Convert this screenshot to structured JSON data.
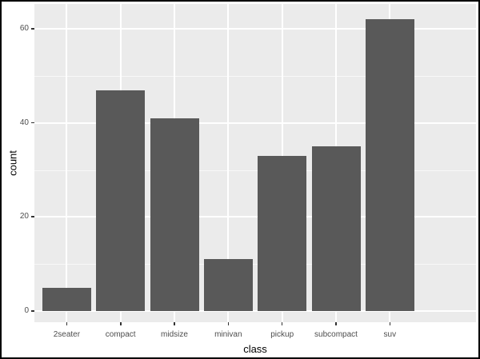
{
  "figure": {
    "background": "#FFFFFF",
    "border_color": "#000000"
  },
  "chart_data": {
    "type": "bar",
    "title": "",
    "xlabel": "class",
    "ylabel": "count",
    "categories": [
      "2seater",
      "compact",
      "midsize",
      "minivan",
      "pickup",
      "subcompact",
      "suv"
    ],
    "values": [
      5,
      47,
      41,
      11,
      33,
      35,
      62
    ],
    "y_major_ticks": [
      0,
      20,
      40,
      60
    ],
    "y_minor_ticks": [
      10,
      30,
      50
    ],
    "ylim": [
      -2.5,
      65.3
    ],
    "grid": "on",
    "legend": "none",
    "style": "ggplot2",
    "colors": {
      "bar_fill": "#595959",
      "panel_background": "#EBEBEB",
      "gridline_major": "#FFFFFF",
      "gridline_minor": "#FFFFFF",
      "tick_label": "#4D4D4D",
      "axis_title": "#000000",
      "tick_mark": "#333333"
    }
  }
}
